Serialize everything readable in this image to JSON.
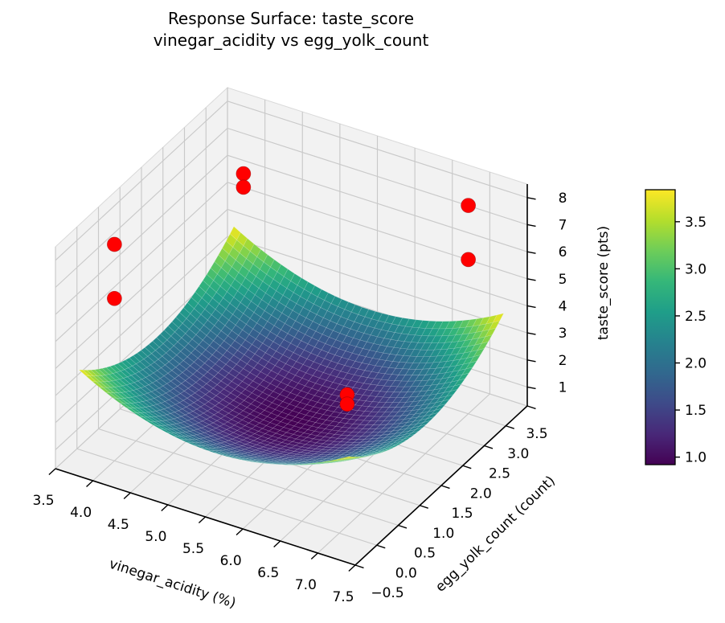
{
  "chart_data": {
    "type": "surface3d",
    "title_lines": [
      "Response Surface: taste_score",
      "vinegar_acidity vs egg_yolk_count"
    ],
    "axes": {
      "x": {
        "label": "vinegar_acidity (%)",
        "range": [
          3.5,
          7.5
        ],
        "ticks": [
          {
            "v": 3.5,
            "t": "3.5"
          },
          {
            "v": 4.0,
            "t": "4.0"
          },
          {
            "v": 4.5,
            "t": "4.5"
          },
          {
            "v": 5.0,
            "t": "5.0"
          },
          {
            "v": 5.5,
            "t": "5.5"
          },
          {
            "v": 6.0,
            "t": "6.0"
          },
          {
            "v": 6.5,
            "t": "6.5"
          },
          {
            "v": 7.0,
            "t": "7.0"
          },
          {
            "v": 7.5,
            "t": "7.5"
          }
        ]
      },
      "y": {
        "label": "egg_yolk_count (count)",
        "range": [
          -0.5,
          3.5
        ],
        "ticks": [
          {
            "v": -0.5,
            "t": "−0.5"
          },
          {
            "v": 0.0,
            "t": "0.0"
          },
          {
            "v": 0.5,
            "t": "0.5"
          },
          {
            "v": 1.0,
            "t": "1.0"
          },
          {
            "v": 1.5,
            "t": "1.5"
          },
          {
            "v": 2.0,
            "t": "2.0"
          },
          {
            "v": 2.5,
            "t": "2.5"
          },
          {
            "v": 3.0,
            "t": "3.0"
          },
          {
            "v": 3.5,
            "t": "3.5"
          }
        ]
      },
      "z": {
        "label": "taste_score (pts)",
        "range": [
          0.3,
          8.5
        ],
        "ticks": [
          {
            "v": 1,
            "t": "1"
          },
          {
            "v": 2,
            "t": "2"
          },
          {
            "v": 3,
            "t": "3"
          },
          {
            "v": 4,
            "t": "4"
          },
          {
            "v": 5,
            "t": "5"
          },
          {
            "v": 6,
            "t": "6"
          },
          {
            "v": 7,
            "t": "7"
          },
          {
            "v": 8,
            "t": "8"
          }
        ]
      }
    },
    "surface": {
      "x_range": [
        3.7,
        7.3
      ],
      "y_range": [
        -0.3,
        3.3
      ],
      "min_point": [
        5.5,
        1.5
      ],
      "z_min": 0.92,
      "z_max": 3.84,
      "curvature": 0.4506,
      "grid_cells": 40
    },
    "scatter": {
      "color": "#ff0000",
      "edge_color": "#8c0000",
      "points": [
        [
          4.0,
          3.0,
          6.5
        ],
        [
          4.0,
          3.0,
          6.0
        ],
        [
          7.0,
          3.0,
          8.0
        ],
        [
          7.0,
          3.0,
          6.0
        ],
        [
          4.0,
          0.0,
          8.3
        ],
        [
          4.0,
          0.0,
          6.3
        ],
        [
          5.9,
          2.1,
          1.35
        ],
        [
          5.9,
          2.1,
          1.0
        ]
      ]
    },
    "colorbar": {
      "vmin": 0.92,
      "vmax": 3.84,
      "ticks": [
        {
          "v": 1.0,
          "t": "1.0"
        },
        {
          "v": 1.5,
          "t": "1.5"
        },
        {
          "v": 2.0,
          "t": "2.0"
        },
        {
          "v": 2.5,
          "t": "2.5"
        },
        {
          "v": 3.0,
          "t": "3.0"
        },
        {
          "v": 3.5,
          "t": "3.5"
        }
      ]
    },
    "colormap": {
      "name": "viridis",
      "stops": [
        "#440154",
        "#482878",
        "#3e4a89",
        "#31688e",
        "#26828e",
        "#1f9e89",
        "#35b779",
        "#6dcd59",
        "#b4de2c",
        "#fde725"
      ]
    },
    "style": {
      "pane_color": "#f2f2f2",
      "grid_color": "#c9c9c9",
      "spine_color": "#000000",
      "mesh_line_color": "rgba(255,255,255,0.22)"
    }
  }
}
